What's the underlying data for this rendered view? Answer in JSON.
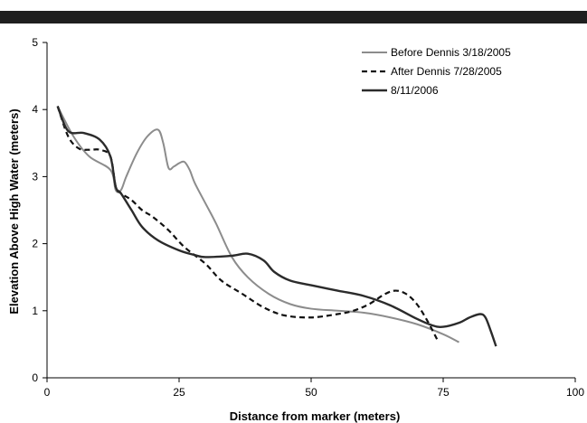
{
  "header_bar": {
    "color": "#1f1f1f"
  },
  "chart_data": {
    "type": "line",
    "title": "",
    "xlabel": "Distance from marker (meters)",
    "ylabel": "Elevation Above High Water (meters)",
    "xlim": [
      0,
      100
    ],
    "ylim": [
      0,
      5
    ],
    "xticks": [
      0,
      25,
      50,
      75,
      100
    ],
    "yticks": [
      0,
      1,
      2,
      3,
      4,
      5
    ],
    "grid": false,
    "legend": "top-right",
    "series": [
      {
        "name": "Before Dennis 3/18/2005",
        "color": "#8c8c8c",
        "dash": "solid",
        "x": [
          2,
          5,
          8,
          12,
          13,
          14,
          15,
          17,
          19,
          21,
          22,
          23,
          24,
          25,
          26,
          27,
          28,
          30,
          32,
          35,
          38,
          42,
          46,
          50,
          55,
          60,
          65,
          70,
          75,
          78
        ],
        "y": [
          4.05,
          3.6,
          3.3,
          3.1,
          2.8,
          2.8,
          3.0,
          3.35,
          3.6,
          3.7,
          3.5,
          3.13,
          3.15,
          3.2,
          3.22,
          3.1,
          2.9,
          2.6,
          2.3,
          1.8,
          1.5,
          1.25,
          1.1,
          1.03,
          1.0,
          0.97,
          0.9,
          0.8,
          0.65,
          0.53
        ]
      },
      {
        "name": "After Dennis 7/28/2005",
        "color": "#111111",
        "dash": "dashed",
        "x": [
          2,
          4,
          6,
          8,
          10,
          12,
          13,
          14,
          16,
          18,
          20,
          23,
          26,
          30,
          33,
          37,
          41,
          45,
          50,
          55,
          58,
          61,
          64,
          66,
          68,
          70,
          72,
          74
        ],
        "y": [
          4.05,
          3.6,
          3.42,
          3.4,
          3.4,
          3.3,
          2.85,
          2.75,
          2.65,
          2.5,
          2.4,
          2.2,
          1.95,
          1.7,
          1.45,
          1.25,
          1.05,
          0.93,
          0.9,
          0.95,
          1.0,
          1.1,
          1.25,
          1.3,
          1.25,
          1.1,
          0.85,
          0.55
        ]
      },
      {
        "name": "8/11/2006",
        "color": "#2b2b2b",
        "dash": "solid",
        "x": [
          2,
          4,
          7,
          10,
          12,
          13,
          14,
          16,
          18,
          21,
          25,
          28,
          30,
          35,
          38,
          41,
          43,
          46,
          50,
          55,
          60,
          65,
          70,
          73,
          75,
          78,
          80,
          82,
          83,
          84,
          85
        ],
        "y": [
          4.05,
          3.68,
          3.65,
          3.55,
          3.3,
          2.85,
          2.75,
          2.5,
          2.25,
          2.05,
          1.9,
          1.83,
          1.8,
          1.82,
          1.85,
          1.75,
          1.58,
          1.45,
          1.38,
          1.3,
          1.22,
          1.08,
          0.88,
          0.78,
          0.76,
          0.82,
          0.9,
          0.95,
          0.9,
          0.7,
          0.47
        ]
      }
    ]
  }
}
